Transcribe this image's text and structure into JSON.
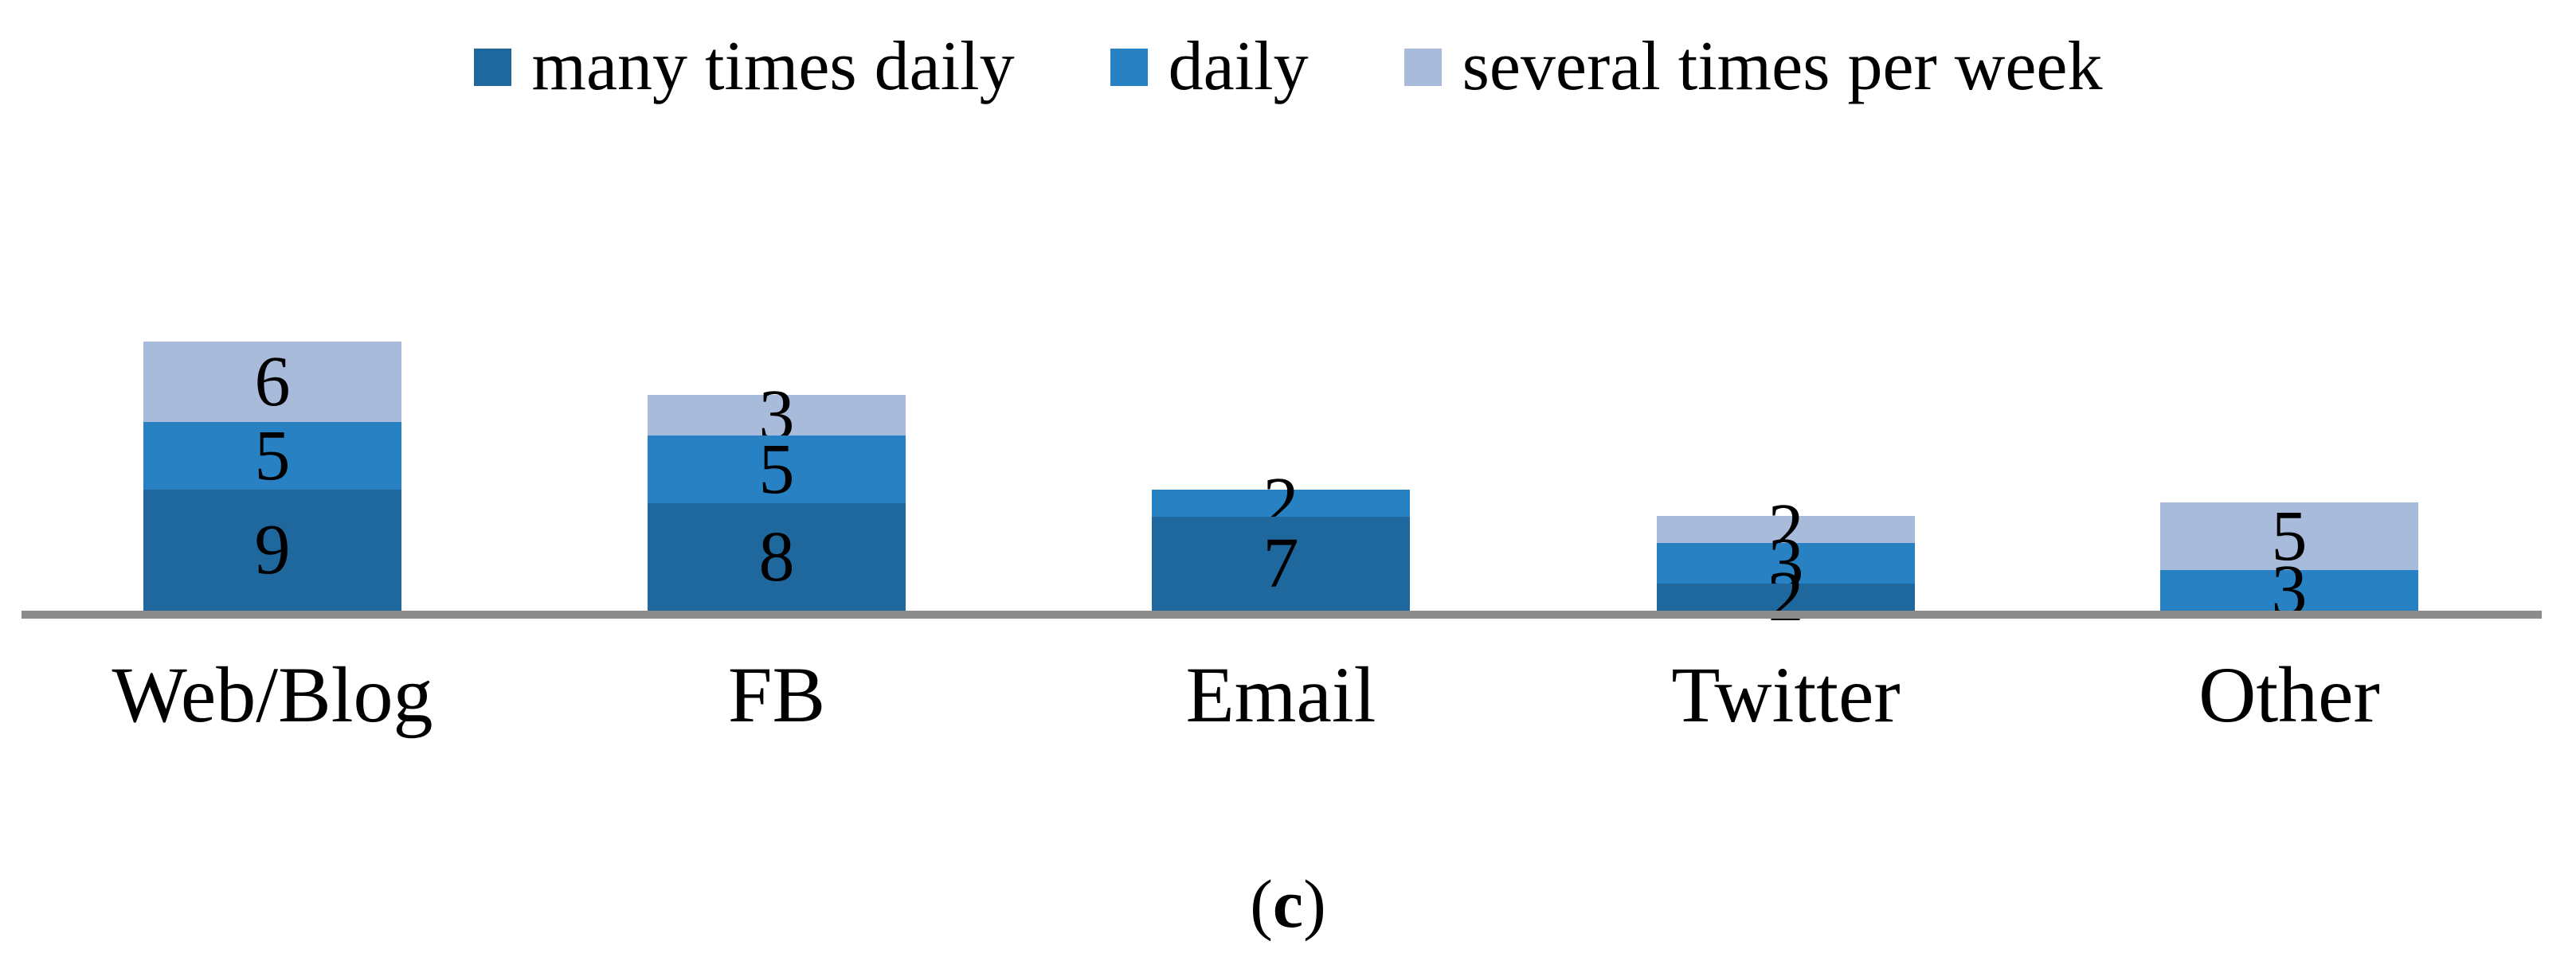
{
  "figure": {
    "caption": {
      "open": "(",
      "letter": "c",
      "close": ")"
    }
  },
  "chart_data": {
    "type": "bar",
    "stacked": true,
    "orientation": "vertical",
    "title": "",
    "xlabel": "",
    "ylabel": "",
    "categories": [
      "Web/Blog",
      "FB",
      "Email",
      "Twitter",
      "Other"
    ],
    "series": [
      {
        "name": "many times daily",
        "color": "#1F689E",
        "values": [
          9,
          8,
          7,
          2,
          0
        ]
      },
      {
        "name": "daily",
        "color": "#2781C2",
        "values": [
          5,
          5,
          2,
          3,
          3
        ]
      },
      {
        "name": "several times per week",
        "color": "#A8BBDA",
        "values": [
          6,
          3,
          0,
          2,
          5
        ]
      }
    ],
    "totals": [
      20,
      16,
      9,
      7,
      8
    ],
    "value_labels_shown": true,
    "ylim": [
      0,
      20
    ],
    "grid": false,
    "y_axis_ticks_shown": false,
    "legend_position": "top",
    "axis_line_color": "#8C8C8C"
  }
}
